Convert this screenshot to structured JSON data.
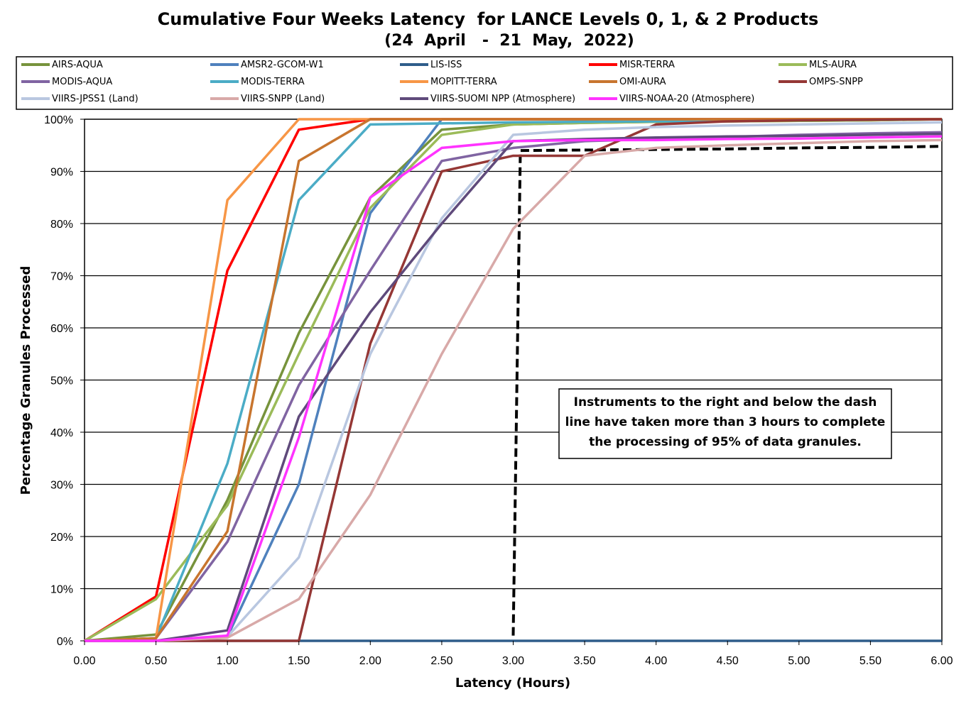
{
  "chart_data": {
    "type": "line",
    "title": "Cumulative Four Weeks Latency  for LANCE Levels 0, 1, & 2 Products",
    "subtitle": "(24  April   -  21  May,  2022)",
    "xlabel": "Latency (Hours)",
    "ylabel": "Percentage Granules Processed",
    "xlim": [
      0,
      6
    ],
    "ylim": [
      0,
      100
    ],
    "x_tick_labels": [
      "0.00",
      "0.50",
      "1.00",
      "1.50",
      "2.00",
      "2.50",
      "3.00",
      "3.50",
      "4.00",
      "4.50",
      "5.00",
      "5.50",
      "6.00"
    ],
    "y_tick_labels": [
      "0%",
      "10%",
      "20%",
      "30%",
      "40%",
      "50%",
      "60%",
      "70%",
      "80%",
      "90%",
      "100%"
    ],
    "grid": "horizontal",
    "legend_position": "top",
    "x": [
      0,
      0.5,
      1.0,
      1.5,
      2.0,
      2.5,
      3.0,
      3.5,
      4.0,
      4.5,
      5.0,
      5.5,
      6.0
    ],
    "series": [
      {
        "name": "AIRS-AQUA",
        "color": "#77933C",
        "values": [
          0,
          1.2,
          27,
          59,
          85,
          98,
          99,
          99.3,
          99.5,
          99.6,
          99.7,
          99.8,
          100
        ]
      },
      {
        "name": "AMSR2-GCOM-W1",
        "color": "#4F81BD",
        "values": [
          0,
          0,
          0.8,
          30,
          82,
          100,
          100,
          100,
          100,
          100,
          100,
          100,
          100
        ]
      },
      {
        "name": "LIS-ISS",
        "color": "#2F5D8A",
        "values": [
          0,
          0,
          0,
          0,
          0,
          0,
          0,
          0,
          0,
          0,
          0,
          0,
          0
        ]
      },
      {
        "name": "MISR-TERRA",
        "color": "#FF0000",
        "values": [
          0,
          8.5,
          71,
          98,
          100,
          100,
          100,
          100,
          100,
          100,
          100,
          100,
          100
        ]
      },
      {
        "name": "MLS-AURA",
        "color": "#9BBB59",
        "values": [
          0,
          8,
          26,
          55,
          83,
          97,
          99,
          99.3,
          99.5,
          99.6,
          99.7,
          99.8,
          100
        ]
      },
      {
        "name": "MODIS-AQUA",
        "color": "#8064A2",
        "values": [
          0,
          0.5,
          19,
          49,
          71,
          92,
          94.5,
          95.8,
          96.2,
          96.6,
          97,
          97.3,
          97.5
        ]
      },
      {
        "name": "MODIS-TERRA",
        "color": "#4BACC6",
        "values": [
          0,
          0.5,
          34,
          84.5,
          99,
          99.2,
          99.4,
          99.5,
          99.6,
          99.7,
          99.8,
          99.9,
          100
        ]
      },
      {
        "name": "MOPITT-TERRA",
        "color": "#F79646",
        "values": [
          0,
          0.5,
          84.5,
          100,
          100,
          100,
          100,
          100,
          100,
          100,
          100,
          100,
          100
        ]
      },
      {
        "name": "OMI-AURA",
        "color": "#C8752E",
        "values": [
          0,
          0.5,
          21,
          92,
          100,
          100,
          100,
          100,
          100,
          100,
          100,
          100,
          100
        ]
      },
      {
        "name": "OMPS-SNPP",
        "color": "#953735",
        "values": [
          0,
          0,
          0,
          0,
          57,
          90,
          93,
          93,
          99,
          99.6,
          99.8,
          99.9,
          100
        ]
      },
      {
        "name": "VIIRS-JPSS1 (Land)",
        "color": "#B9C7E0",
        "values": [
          0,
          0,
          0.8,
          16,
          55,
          81,
          97,
          98,
          98.5,
          98.8,
          99,
          99.2,
          99.4
        ]
      },
      {
        "name": "VIIRS-SNPP (Land)",
        "color": "#D8A9A8",
        "values": [
          0,
          0,
          0.6,
          8,
          28,
          55,
          79,
          93,
          94.5,
          95,
          95.4,
          95.8,
          96
        ]
      },
      {
        "name": "VIIRS-SUOMI NPP (Atmosphere)",
        "color": "#5F4A7B",
        "values": [
          0,
          0,
          2,
          43,
          63,
          80,
          95.8,
          96.2,
          96.5,
          96.7,
          96.8,
          97,
          97.2
        ]
      },
      {
        "name": "VIIRS-NOAA-20 (Atmosphere)",
        "color": "#FF33FF",
        "values": [
          0,
          0,
          1,
          39,
          85,
          94.5,
          95.8,
          96,
          96,
          96.2,
          96.3,
          96.5,
          96.7
        ]
      }
    ],
    "annotations": [
      {
        "text_lines": [
          "Instruments to the right and below the dash",
          "line have taken more than 3 hours to complete",
          "the processing of 95% of data granules."
        ]
      }
    ],
    "threshold_line": {
      "style": "dashed",
      "color": "#000000",
      "points": [
        [
          3.0,
          1
        ],
        [
          3.05,
          94
        ],
        [
          4.0,
          94.2
        ],
        [
          4.5,
          94.3
        ],
        [
          5.0,
          94.5
        ],
        [
          5.5,
          94.6
        ],
        [
          6.0,
          94.8
        ]
      ]
    }
  }
}
